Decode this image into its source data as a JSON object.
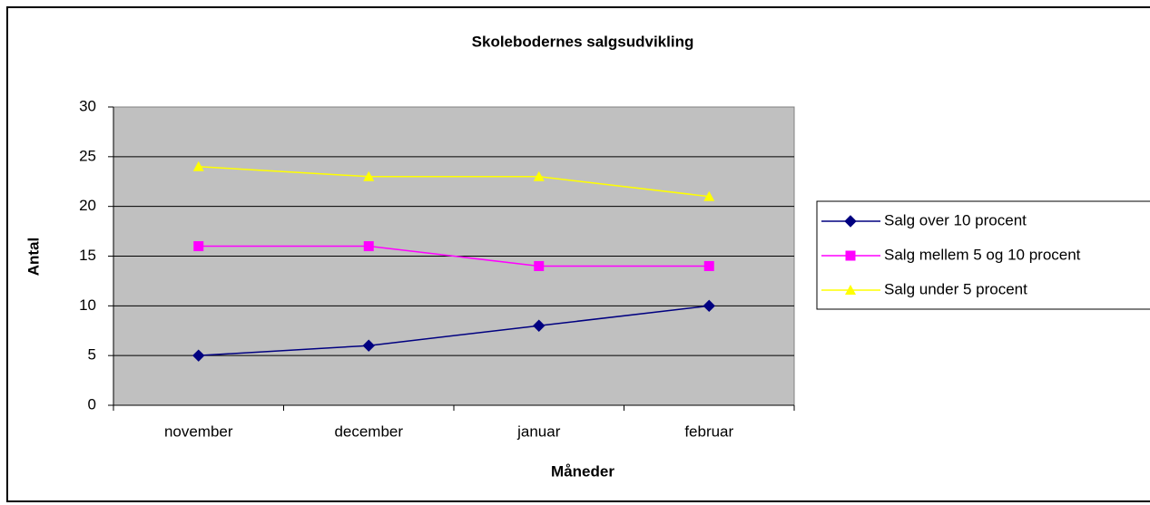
{
  "chart_data": {
    "type": "line",
    "title": "Skolebodernes salgsudvikling",
    "xlabel": "Måneder",
    "ylabel": "Antal",
    "categories": [
      "november",
      "december",
      "januar",
      "februar"
    ],
    "series": [
      {
        "name": "Salg over 10 procent",
        "color": "#000080",
        "marker": "diamond",
        "values": [
          5,
          6,
          8,
          10
        ]
      },
      {
        "name": "Salg mellem 5 og 10 procent",
        "color": "#ff00ff",
        "marker": "square",
        "values": [
          16,
          16,
          14,
          14
        ]
      },
      {
        "name": "Salg under 5 procent",
        "color": "#ffff00",
        "marker": "triangle",
        "values": [
          24,
          23,
          23,
          21
        ]
      }
    ],
    "ylim": [
      0,
      30
    ],
    "yticks": [
      0,
      5,
      10,
      15,
      20,
      25,
      30
    ],
    "grid": true,
    "legend": "right"
  }
}
